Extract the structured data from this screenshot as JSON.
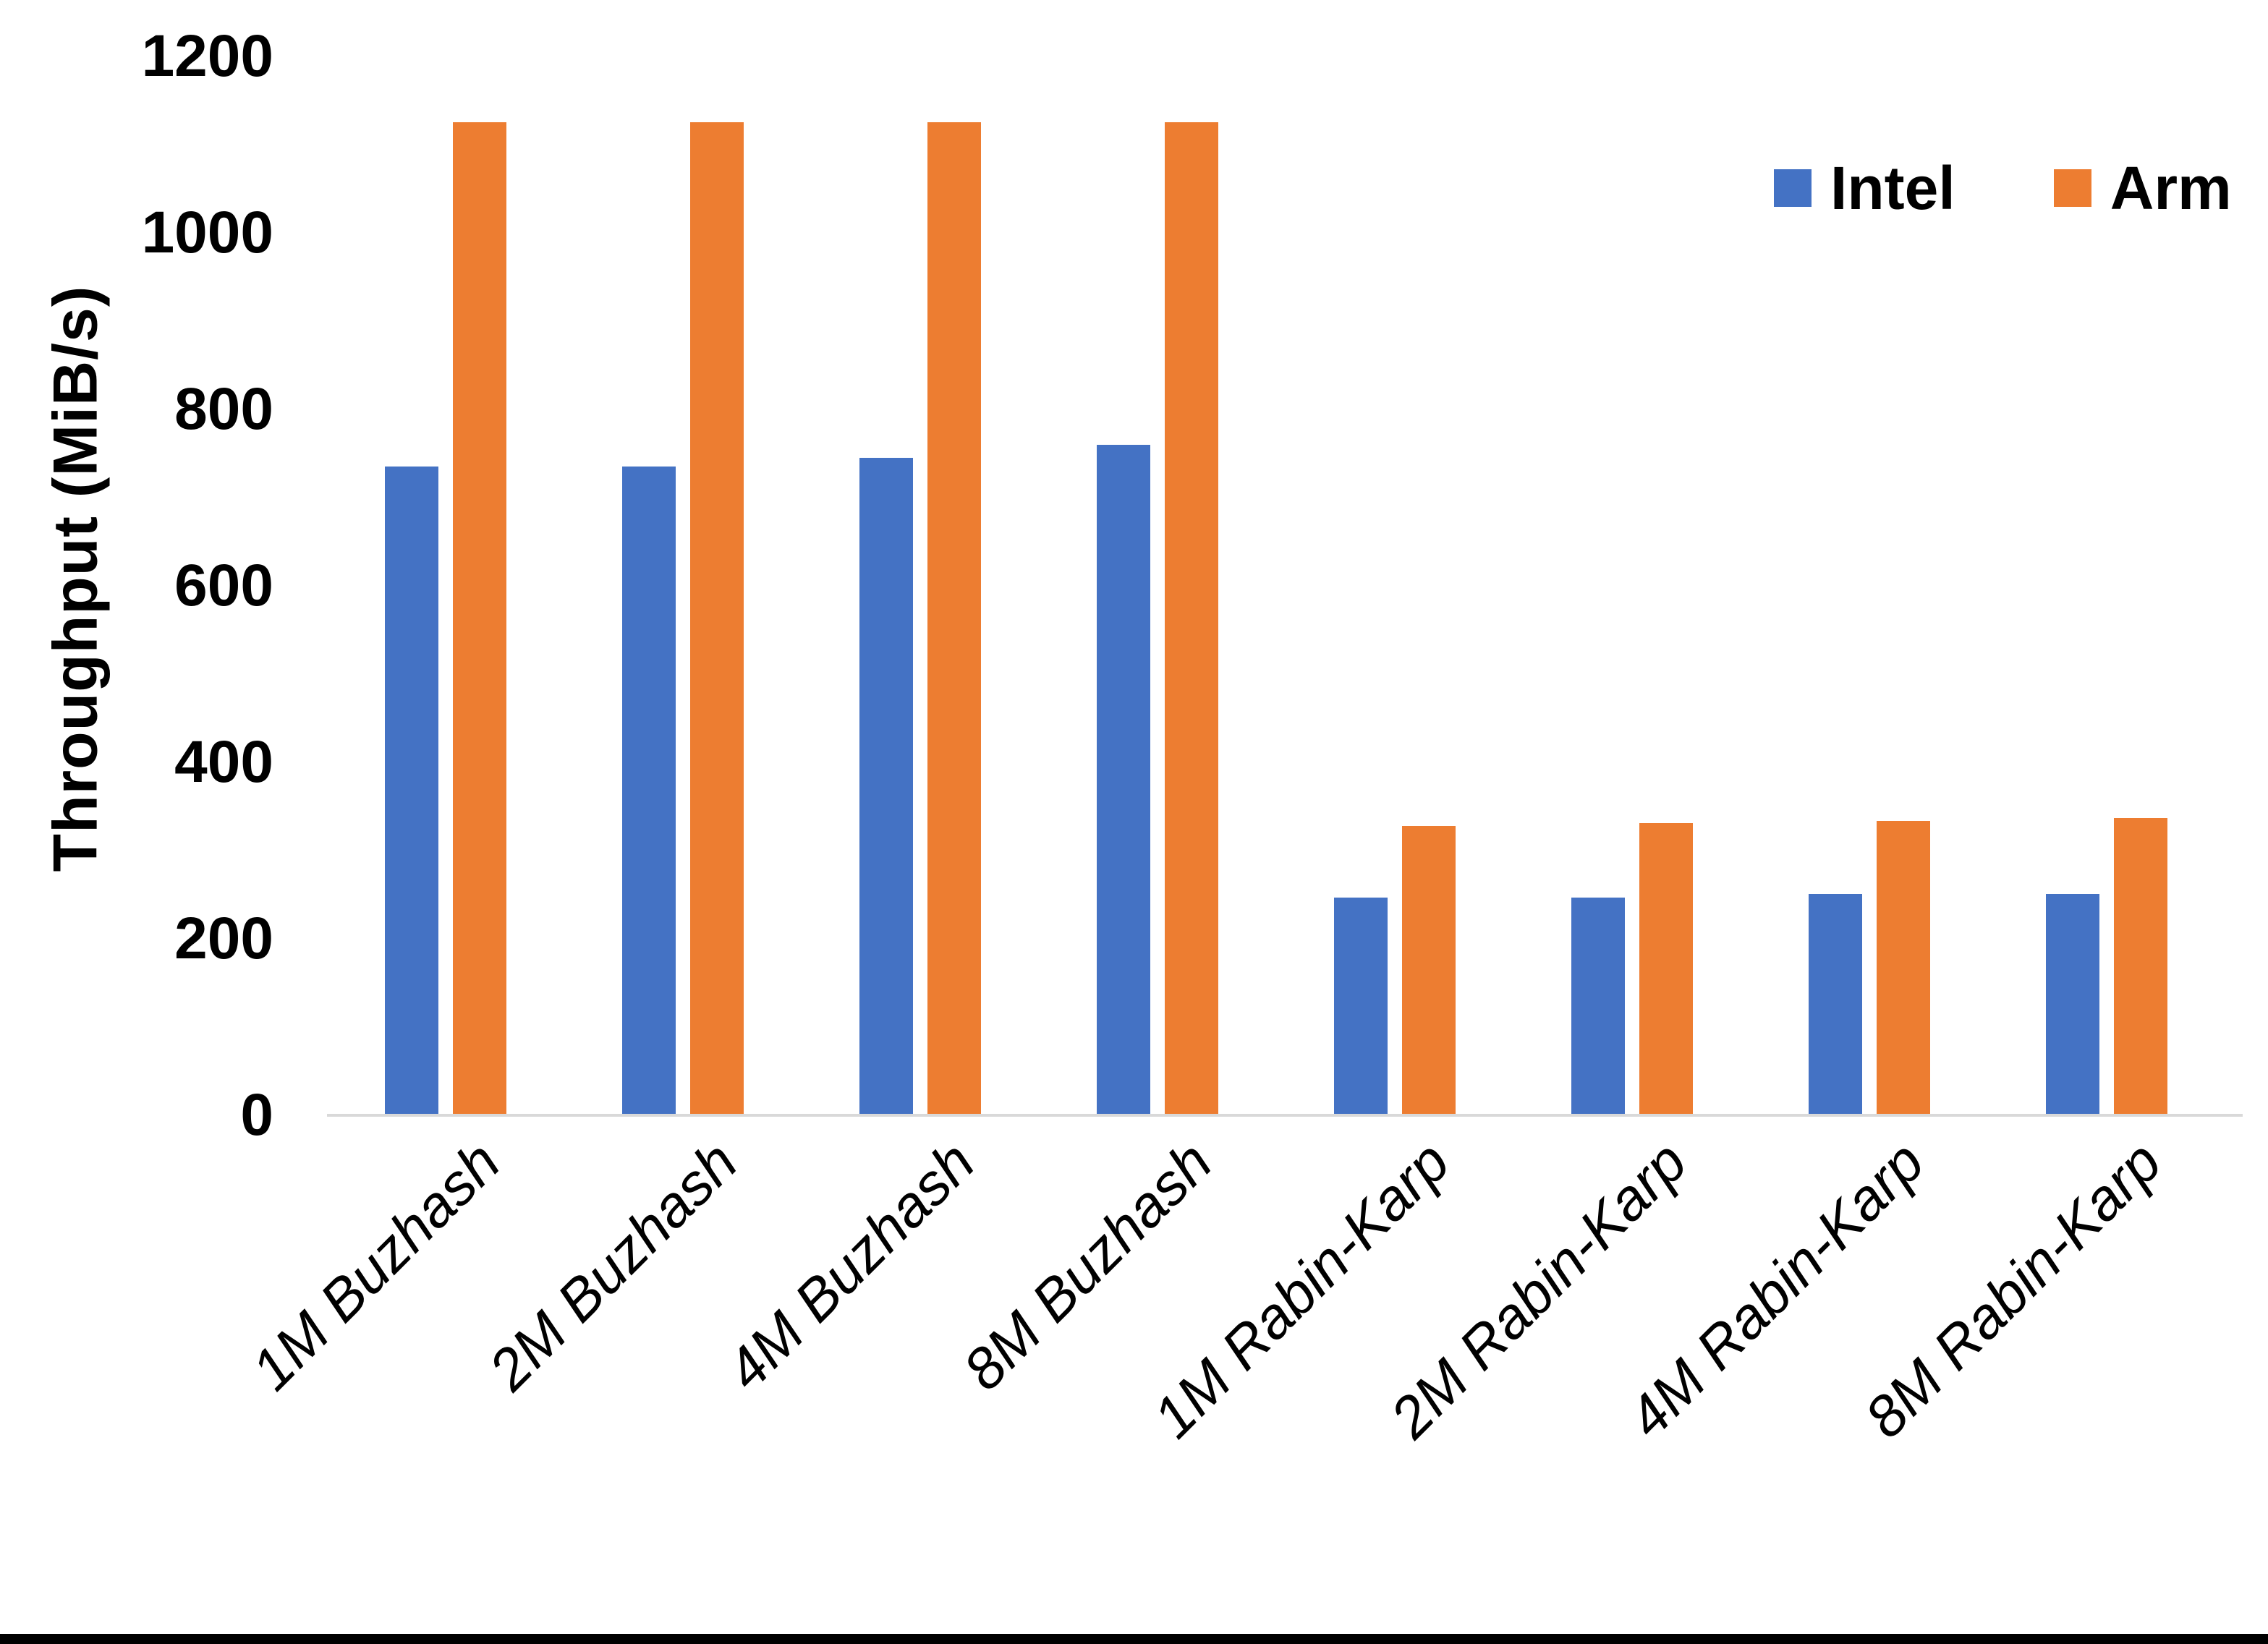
{
  "chart_data": {
    "type": "bar",
    "title": "",
    "xlabel": "",
    "ylabel": "Throughput (MiB/s)",
    "ylim": [
      0,
      1200
    ],
    "yticks": [
      0,
      200,
      400,
      600,
      800,
      1000,
      1200
    ],
    "grid": false,
    "legend_position": "top-right",
    "categories": [
      "1M Buzhash",
      "2M Buzhash",
      "4M Buzhash",
      "8M Buzhash",
      "1M Rabin-Karp",
      "2M Rabin-Karp",
      "4M Rabin-Karp",
      "8M Rabin-Karp"
    ],
    "series": [
      {
        "name": "Intel",
        "color": "#4472C4",
        "values": [
          735,
          735,
          745,
          760,
          247,
          247,
          251,
          251
        ]
      },
      {
        "name": "Arm",
        "color": "#ED7D31",
        "values": [
          1125,
          1125,
          1125,
          1125,
          328,
          331,
          334,
          337
        ]
      }
    ]
  },
  "colors": {
    "axis_line": "#D9D9D9",
    "text": "#000000",
    "background": "#FFFFFF",
    "bottom_border": "#000000"
  }
}
